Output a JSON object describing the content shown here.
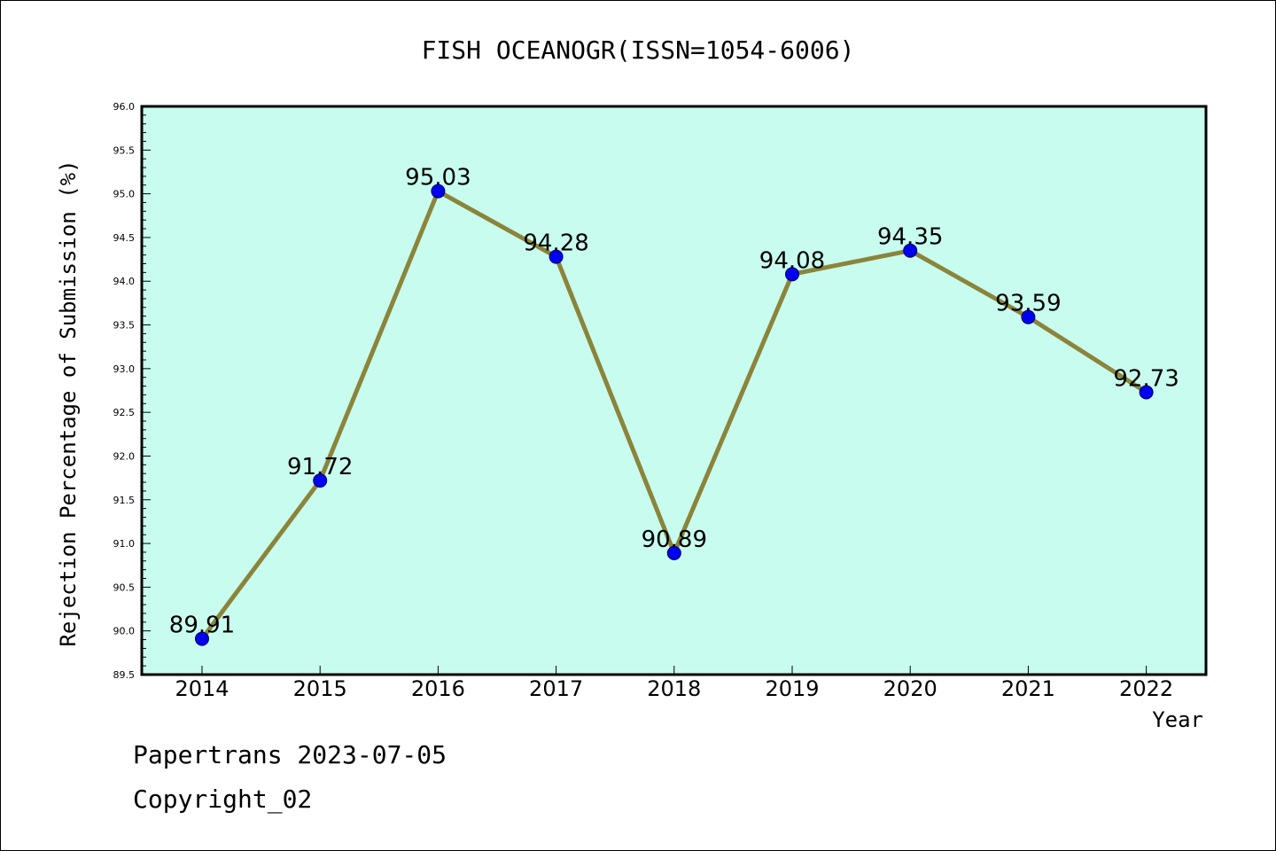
{
  "chart_data": {
    "type": "line",
    "title": "FISH OCEANOGR(ISSN=1054-6006)",
    "xlabel": "Year",
    "ylabel": "Rejection Percentage of Submission (%)",
    "categories": [
      "2014",
      "2015",
      "2016",
      "2017",
      "2018",
      "2019",
      "2020",
      "2021",
      "2022"
    ],
    "values": [
      89.91,
      91.72,
      95.03,
      94.28,
      90.89,
      94.08,
      94.35,
      93.59,
      92.73
    ],
    "data_labels": [
      "89.91",
      "91.72",
      "95.03",
      "94.28",
      "90.89",
      "94.08",
      "94.35",
      "93.59",
      "92.73"
    ],
    "ylim": [
      89.5,
      96.0
    ],
    "yticks": [
      "89.5",
      "90.0",
      "90.5",
      "91.0",
      "91.5",
      "92.0",
      "92.5",
      "93.0",
      "93.5",
      "94.0",
      "94.5",
      "95.0",
      "95.5",
      "96.0"
    ],
    "grid": false,
    "colors": {
      "plot_background": "#c8fcee",
      "line": "#8b843a",
      "marker": "#0000ee"
    }
  },
  "footer": {
    "line1": "Papertrans 2023-07-05",
    "line2": "Copyright_02"
  }
}
